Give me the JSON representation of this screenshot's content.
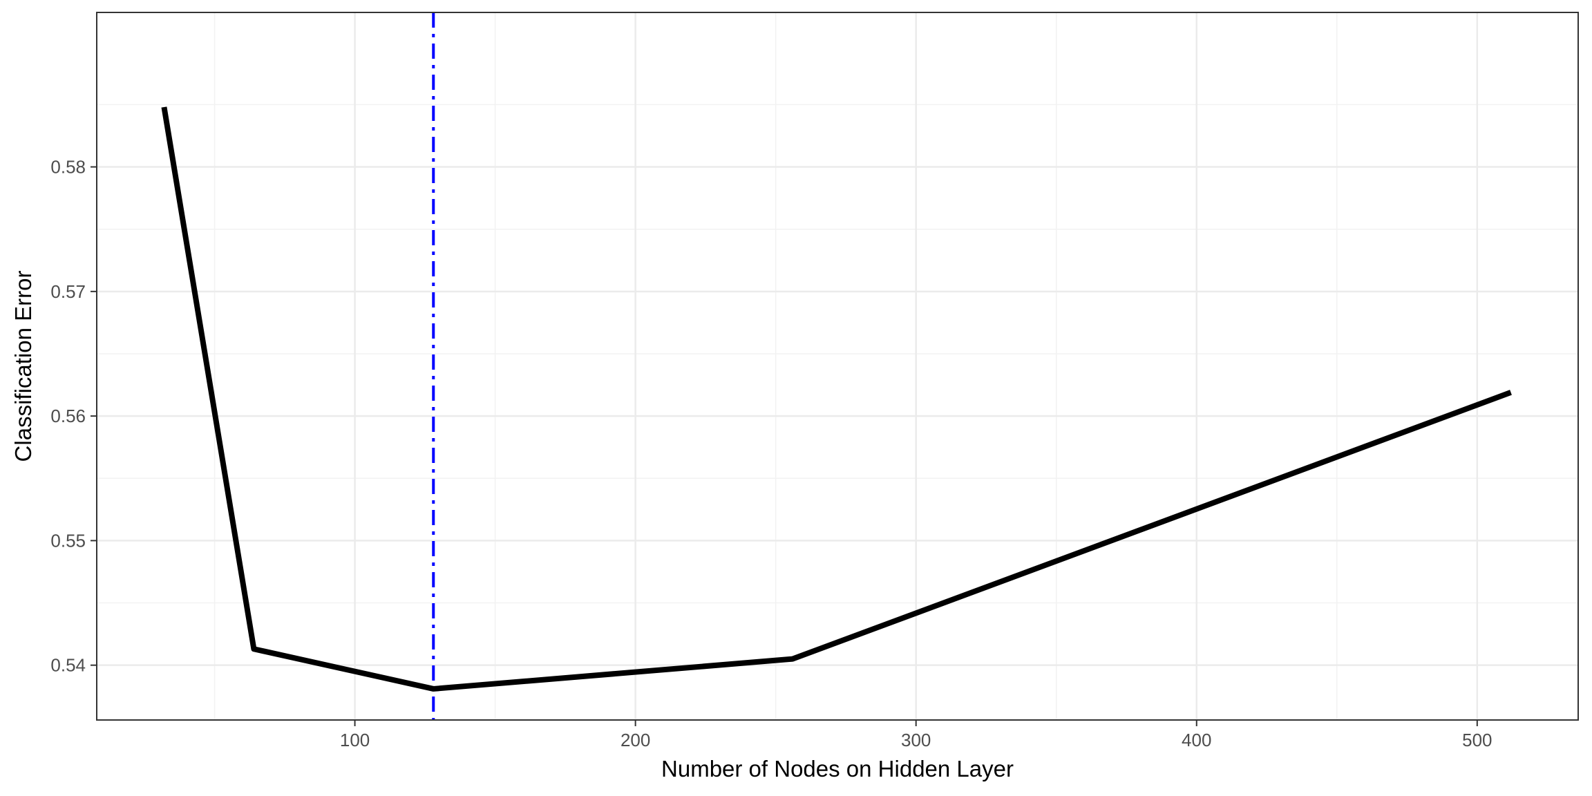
{
  "chart_data": {
    "type": "line",
    "title": "",
    "xlabel": "Number of Nodes on Hidden Layer",
    "ylabel": "Classification Error",
    "xlim": [
      8,
      536
    ],
    "ylim": [
      0.5356,
      0.5924
    ],
    "x_ticks": [
      100,
      200,
      300,
      400,
      500
    ],
    "x_tick_labels": [
      "100",
      "200",
      "300",
      "400",
      "500"
    ],
    "y_ticks": [
      0.54,
      0.55,
      0.56,
      0.57,
      0.58
    ],
    "y_tick_labels": [
      "0.54",
      "0.55",
      "0.56",
      "0.57",
      "0.58"
    ],
    "grid": true,
    "legend": "none",
    "series": [
      {
        "x": [
          32,
          64,
          128,
          256,
          512
        ],
        "y": [
          0.5848,
          0.5413,
          0.5381,
          0.5405,
          0.5619
        ],
        "color": "#000000"
      }
    ],
    "vline": {
      "x": 128,
      "color": "#0000ff",
      "style": "dashdot"
    }
  }
}
